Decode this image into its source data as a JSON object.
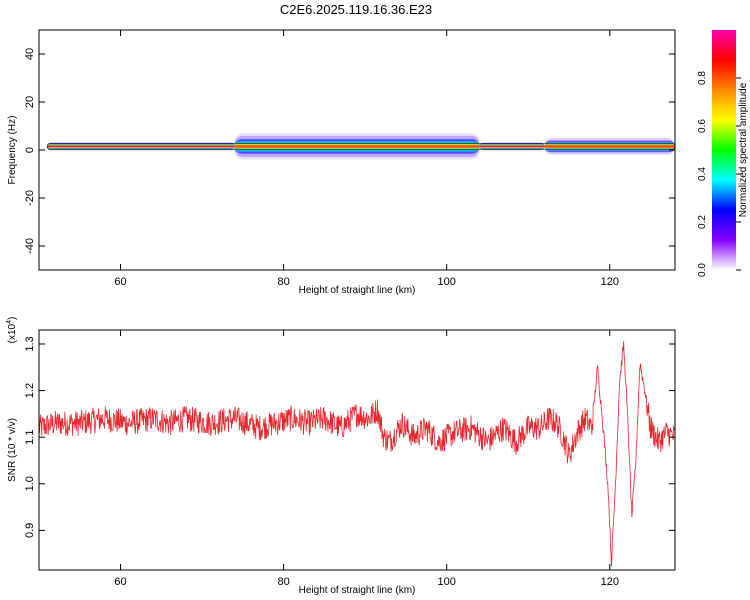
{
  "figure": {
    "title": "C2E6.2025.119.16.36.E23"
  },
  "chart_data": [
    {
      "type": "heatmap",
      "xlabel": "Height of straight line (km)",
      "ylabel": "Frequency (Hz)",
      "xlim": [
        50,
        128
      ],
      "ylim": [
        -50,
        50
      ],
      "xticks": [
        60,
        80,
        100,
        120
      ],
      "yticks": [
        -40,
        -20,
        0,
        20,
        40
      ],
      "grid": false,
      "colorbar": {
        "label": "Normalized spectral amplitude",
        "range": [
          0,
          1
        ],
        "ticks": [
          0.0,
          0.2,
          0.4,
          0.6,
          0.8
        ],
        "colormap": [
          "#ffffff",
          "#8800ff",
          "#0000ff",
          "#00ffff",
          "#00ff00",
          "#ffff00",
          "#ff8800",
          "#ff0000",
          "#ff00aa"
        ]
      },
      "band": {
        "center_hz": 1.5,
        "core_halfwidth_hz": 1.3,
        "x_start": 51,
        "segments": [
          {
            "x": [
              51,
              74
            ],
            "halfwidth_hz": 1.6,
            "level": "strong"
          },
          {
            "x": [
              74,
              104
            ],
            "halfwidth_hz": 5.5,
            "level": "diffuse"
          },
          {
            "x": [
              104,
              112
            ],
            "halfwidth_hz": 1.6,
            "level": "strong"
          },
          {
            "x": [
              112,
              128
            ],
            "halfwidth_hz": 3.5,
            "level": "patchy"
          }
        ]
      }
    },
    {
      "type": "line",
      "xlabel": "Height of straight line (km)",
      "ylabel": "SNR (10 * v/v)",
      "scale_label": "(x10",
      "scale_exp": "4",
      "scale_close": ")",
      "xlim": [
        50,
        128
      ],
      "ylim": [
        0.815,
        1.33
      ],
      "xticks": [
        60,
        80,
        100,
        120
      ],
      "yticks": [
        0.9,
        1.0,
        1.1,
        1.2,
        1.3
      ],
      "grid": false,
      "line_color": "#e8262c",
      "series": [
        {
          "x": [
            50,
            52,
            55,
            58,
            61,
            64,
            66,
            68,
            71,
            74,
            77,
            79,
            81,
            83,
            85,
            87,
            89,
            90.5,
            91.5,
            92.3,
            93,
            94.5,
            96,
            97.5,
            99,
            101,
            103,
            105,
            107,
            108.5,
            110,
            111.5,
            112.5,
            113.5,
            114.3,
            115,
            116,
            117,
            117.8,
            118.5,
            119.2,
            119.8,
            120.2,
            120.7,
            121.2,
            121.7,
            122.2,
            122.7,
            123.2,
            123.7,
            124.3,
            125,
            126,
            127,
            128
          ],
          "y": [
            1.12,
            1.13,
            1.13,
            1.14,
            1.13,
            1.14,
            1.13,
            1.14,
            1.13,
            1.14,
            1.12,
            1.13,
            1.14,
            1.13,
            1.14,
            1.12,
            1.15,
            1.14,
            1.16,
            1.1,
            1.09,
            1.13,
            1.1,
            1.12,
            1.09,
            1.11,
            1.12,
            1.09,
            1.12,
            1.09,
            1.12,
            1.12,
            1.14,
            1.13,
            1.1,
            1.06,
            1.11,
            1.14,
            1.12,
            1.25,
            1.12,
            0.99,
            0.83,
            1.0,
            1.22,
            1.3,
            1.14,
            0.93,
            1.05,
            1.26,
            1.2,
            1.12,
            1.09,
            1.11,
            1.1
          ]
        }
      ]
    }
  ]
}
